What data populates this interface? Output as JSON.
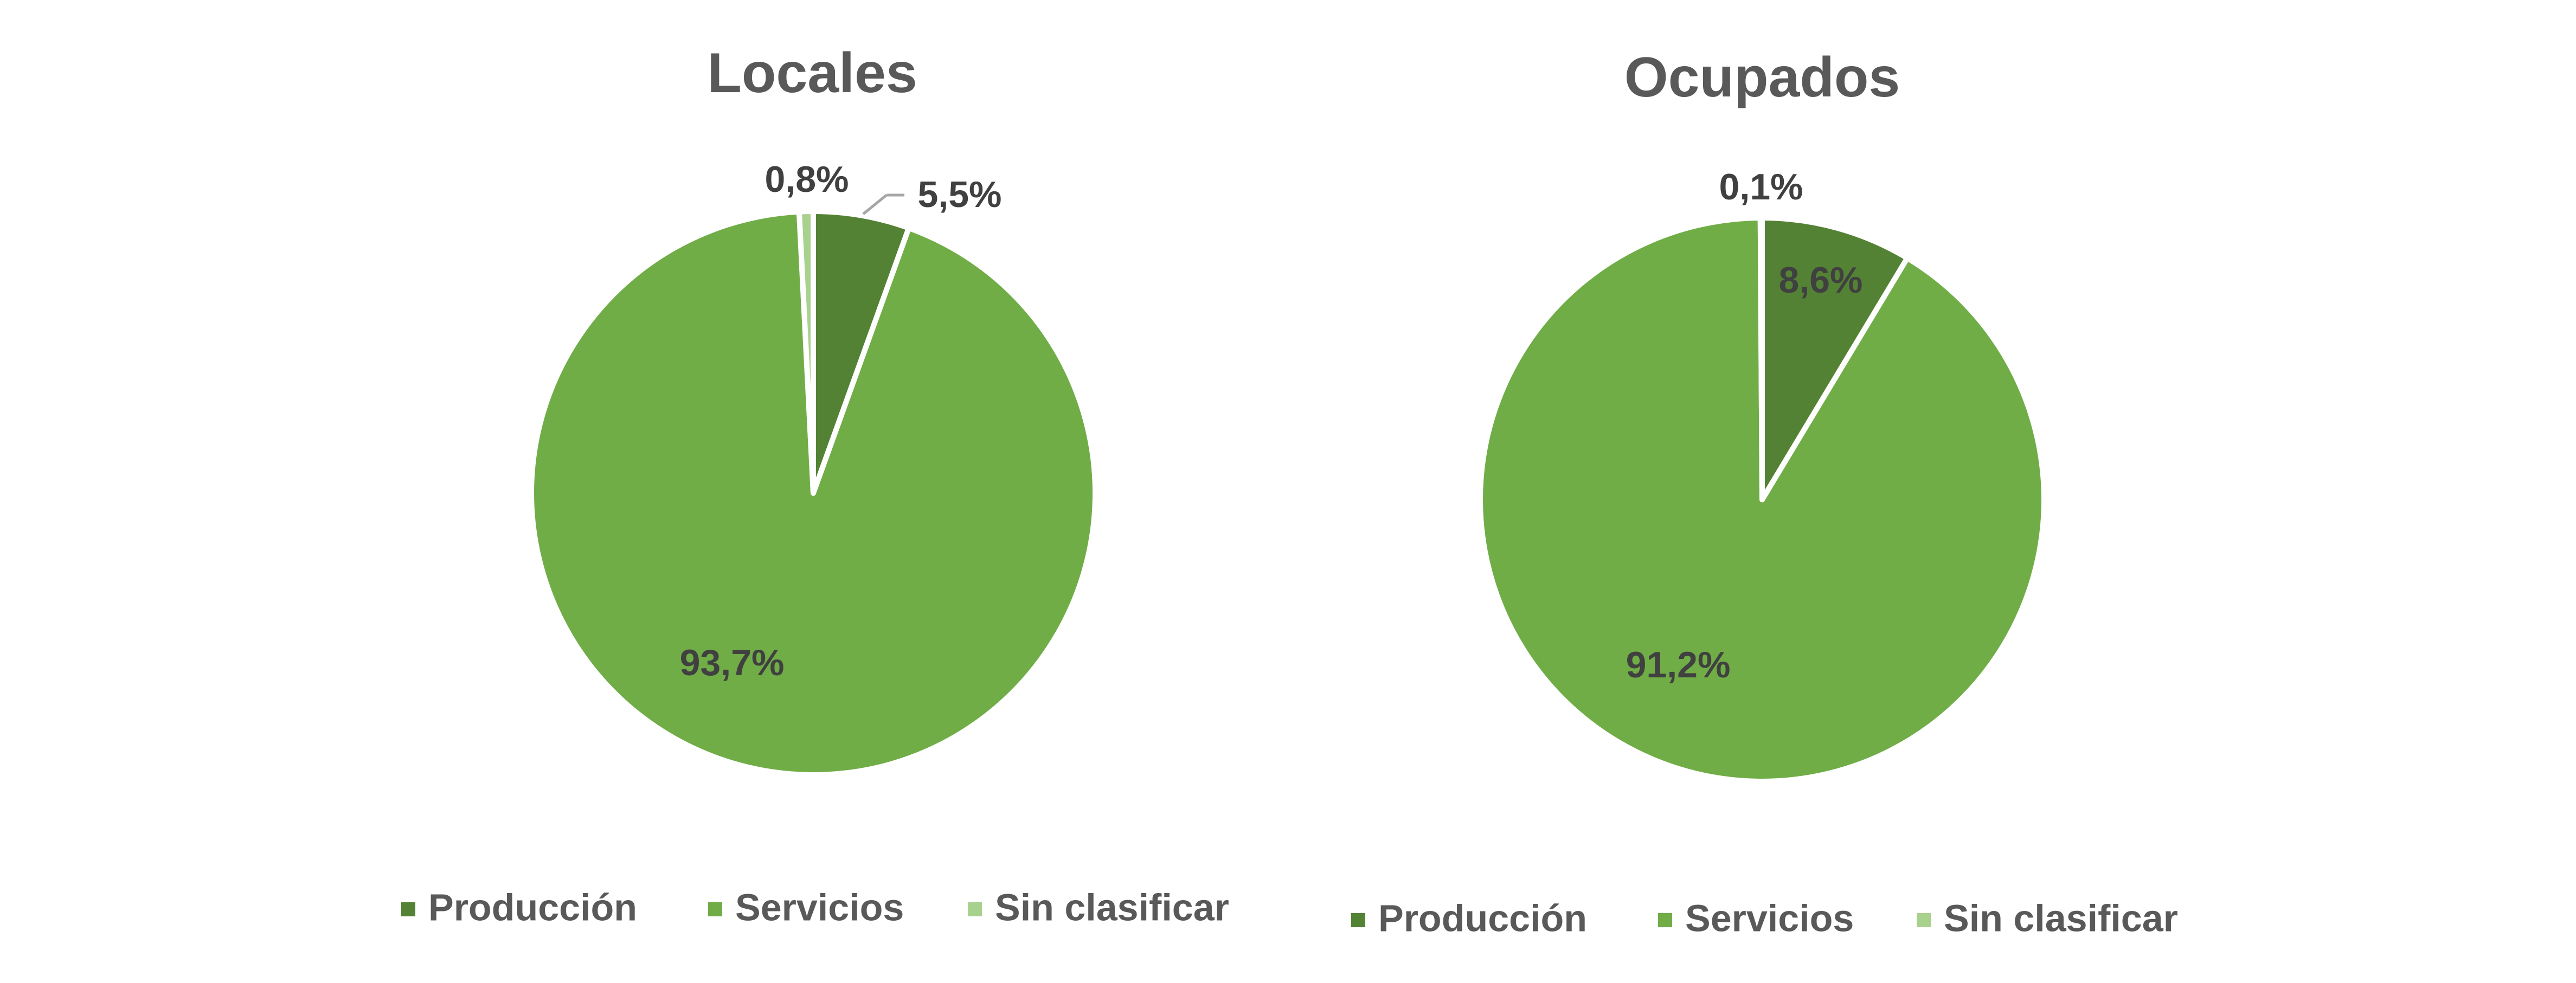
{
  "colors": {
    "Producción": "#548235",
    "Servicios": "#70AD47",
    "Sin clasificar": "#A9D18E",
    "title": "#595959",
    "label": "#404040",
    "leader": "#A6A6A6"
  },
  "chart_data": [
    {
      "type": "pie",
      "title": "Locales",
      "categories": [
        "Producción",
        "Servicios",
        "Sin clasificar"
      ],
      "values": [
        5.5,
        93.7,
        0.8
      ],
      "labels": [
        "5,5%",
        "93,7%",
        "0,8%"
      ],
      "legend": "bottom"
    },
    {
      "type": "pie",
      "title": "Ocupados",
      "categories": [
        "Producción",
        "Servicios",
        "Sin clasificar"
      ],
      "values": [
        8.6,
        91.2,
        0.1
      ],
      "labels": [
        "8,6%",
        "91,2%",
        "0,1%"
      ],
      "legend": "bottom"
    }
  ]
}
